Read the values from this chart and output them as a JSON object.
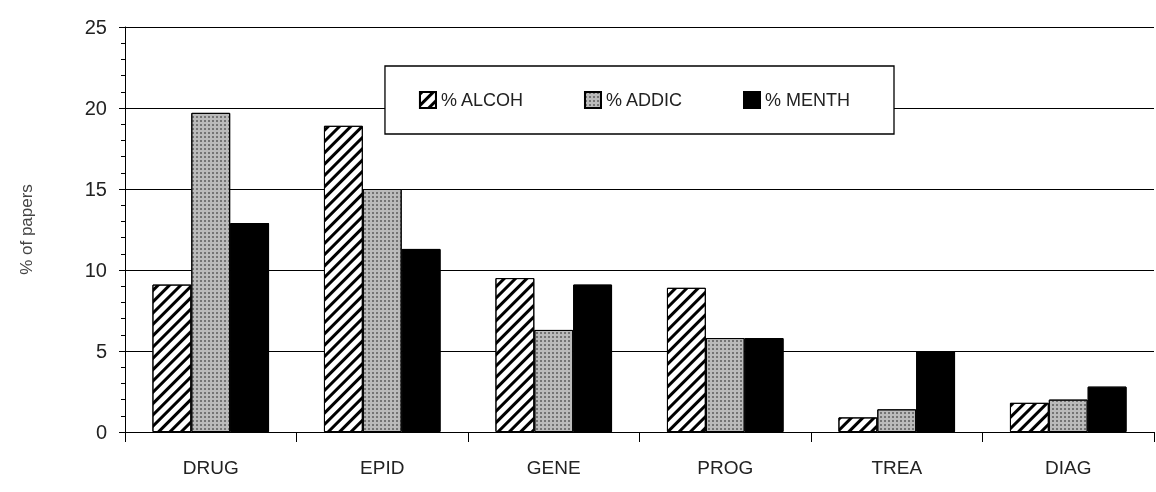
{
  "chart_data": {
    "type": "bar",
    "ylabel": "% of papers",
    "categories": [
      "DRUG",
      "EPID",
      "GENE",
      "PROG",
      "TREA",
      "DIAG"
    ],
    "series": [
      {
        "name": "% ALCOH",
        "color": "#ffffff",
        "values": [
          9.1,
          18.9,
          9.5,
          8.9,
          0.9,
          1.8
        ]
      },
      {
        "name": "% ADDIC",
        "color": "#bbbbbb",
        "values": [
          19.7,
          15.0,
          6.3,
          5.8,
          1.4,
          2.0
        ]
      },
      {
        "name": "% MENTH",
        "color": "#000000",
        "values": [
          12.9,
          11.3,
          9.1,
          5.8,
          5.0,
          2.8
        ]
      }
    ],
    "ylim": [
      0,
      25
    ],
    "yticks": [
      0,
      5,
      10,
      15,
      20,
      25
    ],
    "grid": "y",
    "legend": "top right"
  }
}
